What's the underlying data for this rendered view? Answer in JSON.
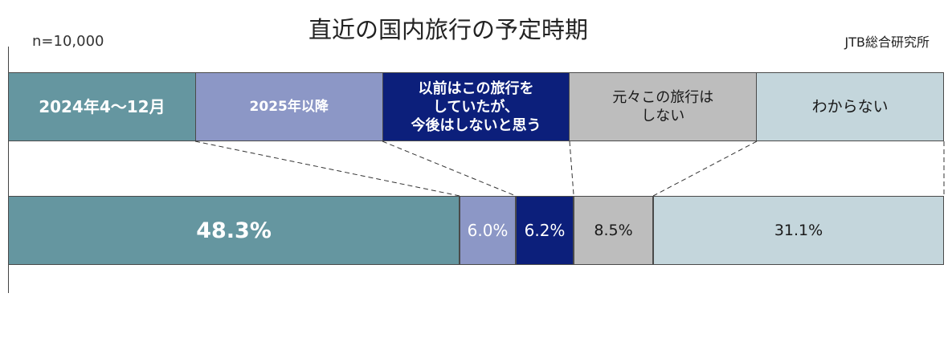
{
  "chart_data": {
    "type": "bar",
    "orientation": "horizontal",
    "stacked": true,
    "title": "直近の国内旅行の予定時期",
    "sample_size": "n=10,000",
    "source": "JTB総合研究所",
    "xlim": [
      0,
      100
    ],
    "grid": false,
    "legend": "top",
    "series": [
      {
        "name": "2024年4～12月",
        "values": [
          48.3
        ],
        "label": "48.3%",
        "color": "#6596a0"
      },
      {
        "name": "2025年以降",
        "values": [
          6.0
        ],
        "label": "6.0%",
        "color": "#8c97c6"
      },
      {
        "name": "以前はこの旅行を\nしていたが、\n今後はしないと思う",
        "values": [
          6.2
        ],
        "label": "6.2%",
        "color": "#0c1f7b"
      },
      {
        "name": "元々この旅行は\nしない",
        "values": [
          8.5
        ],
        "label": "8.5%",
        "color": "#bdbdbd"
      },
      {
        "name": "わからない",
        "values": [
          31.1
        ],
        "label": "31.1%",
        "color": "#c4d6dc"
      }
    ]
  }
}
